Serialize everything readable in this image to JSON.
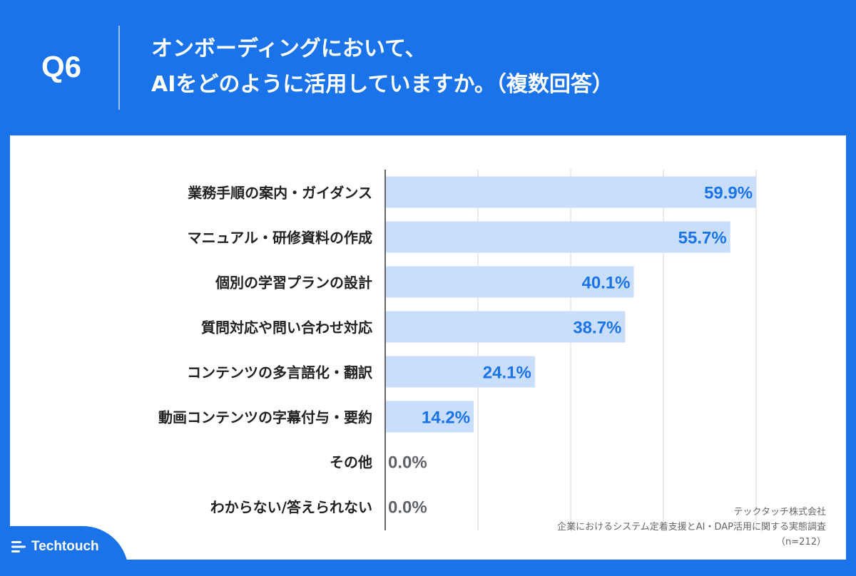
{
  "header": {
    "question": "Q6",
    "title_line1": "オンボーディングにおいて、",
    "title_line2": "AIをどのように活用していますか。（複数回答）"
  },
  "chart_data": {
    "type": "bar",
    "orientation": "horizontal",
    "categories": [
      "業務手順の案内・ガイダンス",
      "マニュアル・研修資料の作成",
      "個別の学習プランの設計",
      "質問対応や問い合わせ対応",
      "コンテンツの多言語化・翻訳",
      "動画コンテンツの字幕付与・要約",
      "その他",
      "わからない/答えられない"
    ],
    "values": [
      59.9,
      55.7,
      40.1,
      38.7,
      24.1,
      14.2,
      0.0,
      0.0
    ],
    "value_labels": [
      "59.9%",
      "55.7%",
      "40.1%",
      "38.7%",
      "24.1%",
      "14.2%",
      "0.0%",
      "0.0%"
    ],
    "xlim": [
      0,
      60
    ],
    "grid": true,
    "colors": {
      "bar": "#c9defa",
      "label": "#1a73e8",
      "zero_label": "#5f6368",
      "grid": "#d6d6d6"
    }
  },
  "source": {
    "company": "テックタッチ株式会社",
    "survey": "企業におけるシステム定着支援とAI・DAP活用に関する実態調査",
    "sample": "（n=212）"
  },
  "logo": {
    "text": "Techtouch",
    "icon": "techtouch-logo-icon"
  },
  "colors": {
    "brand": "#1a73e8",
    "panel": "#ffffff"
  }
}
